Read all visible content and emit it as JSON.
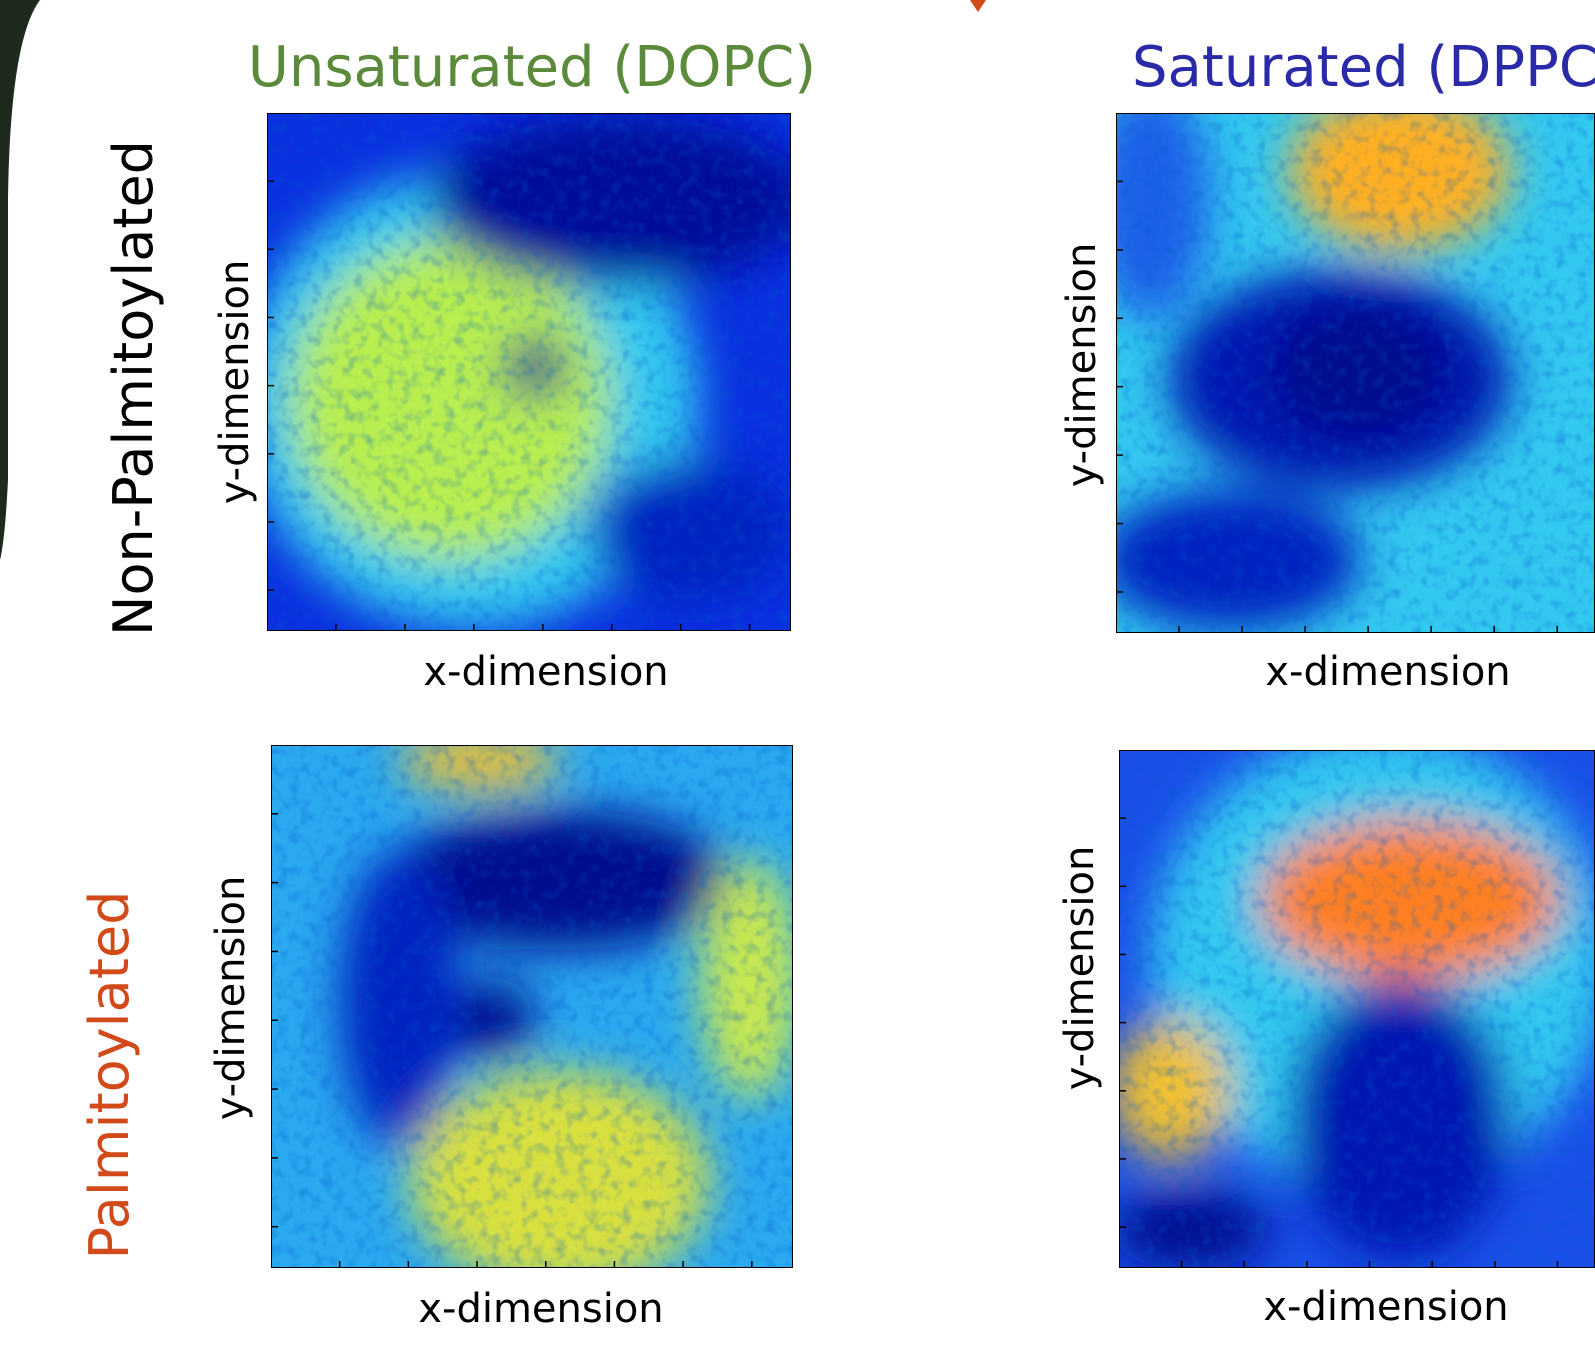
{
  "columns": [
    "Unsaturated (DOPC)",
    "Saturated (DPPC)"
  ],
  "rows": [
    "Non-Palmitoylated",
    "Palmitoylated"
  ],
  "panels": [
    {
      "x_label": "x-dimension",
      "y_label": "y-dimension"
    },
    {
      "x_label": "x-dimension",
      "y_label": "y-dimension"
    },
    {
      "x_label": "x-dimension",
      "y_label": "y-dimension"
    },
    {
      "x_label": "x-dimension",
      "y_label": "y-dimension"
    }
  ]
}
